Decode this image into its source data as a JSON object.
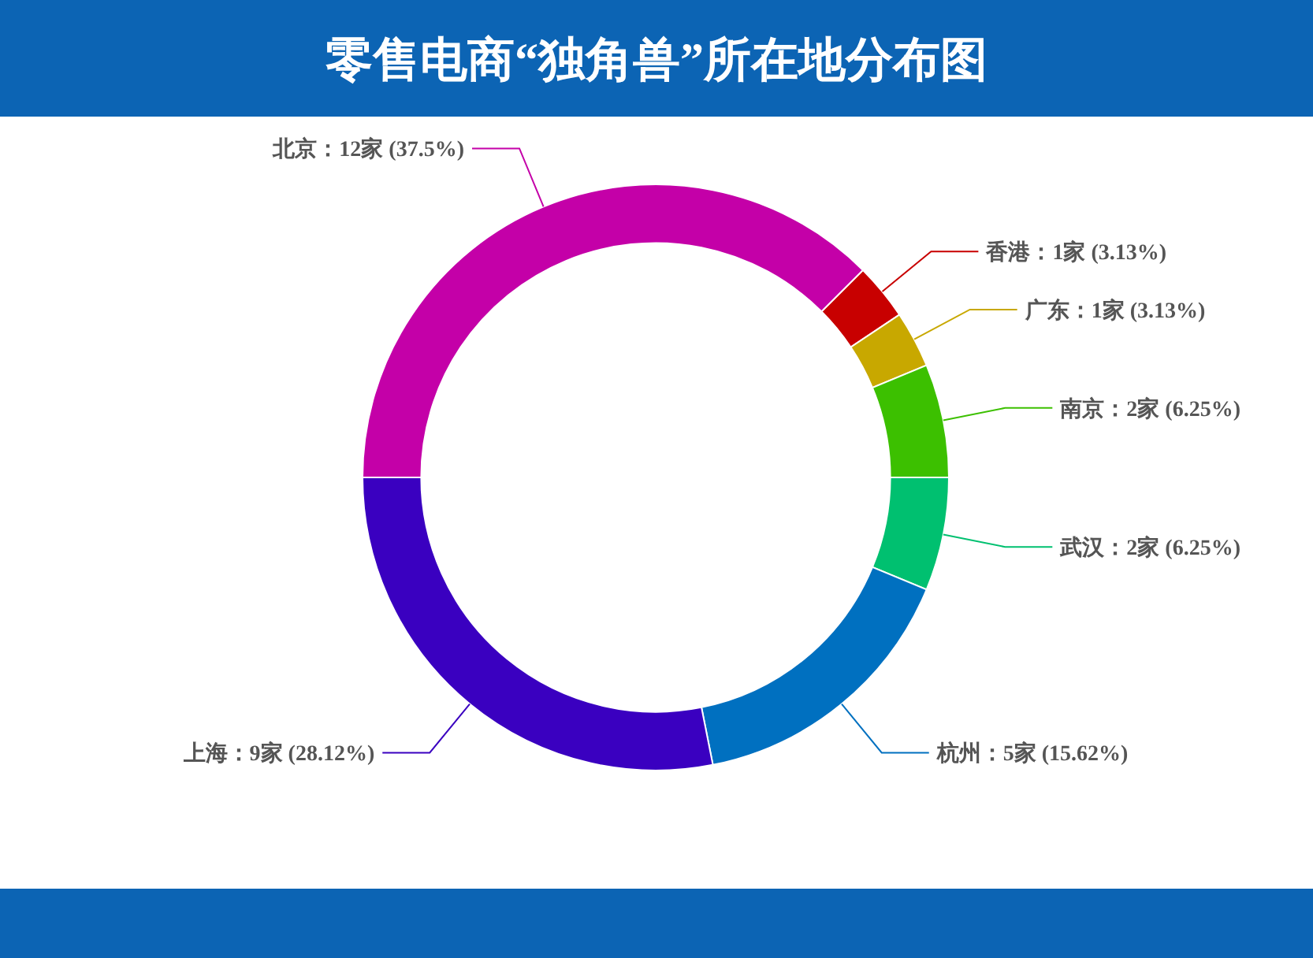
{
  "chart_data": {
    "type": "donut",
    "title": "零售电商“独角兽”所在地分布图",
    "categories": [
      "北京",
      "香港",
      "广东",
      "南京",
      "武汉",
      "杭州",
      "上海"
    ],
    "values": [
      12,
      1,
      1,
      2,
      2,
      5,
      9
    ],
    "value_labels": [
      "12家 (37.5%)",
      "1家 (3.13%)",
      "1家 (3.13%)",
      "2家 (6.25%)",
      "2家 (6.25%)",
      "5家 (15.62%)",
      "9家 (28.12%)"
    ],
    "colors": [
      "#c400a8",
      "#c80000",
      "#c8a800",
      "#3cc000",
      "#00c070",
      "#0070c0",
      "#3a00c0"
    ]
  }
}
